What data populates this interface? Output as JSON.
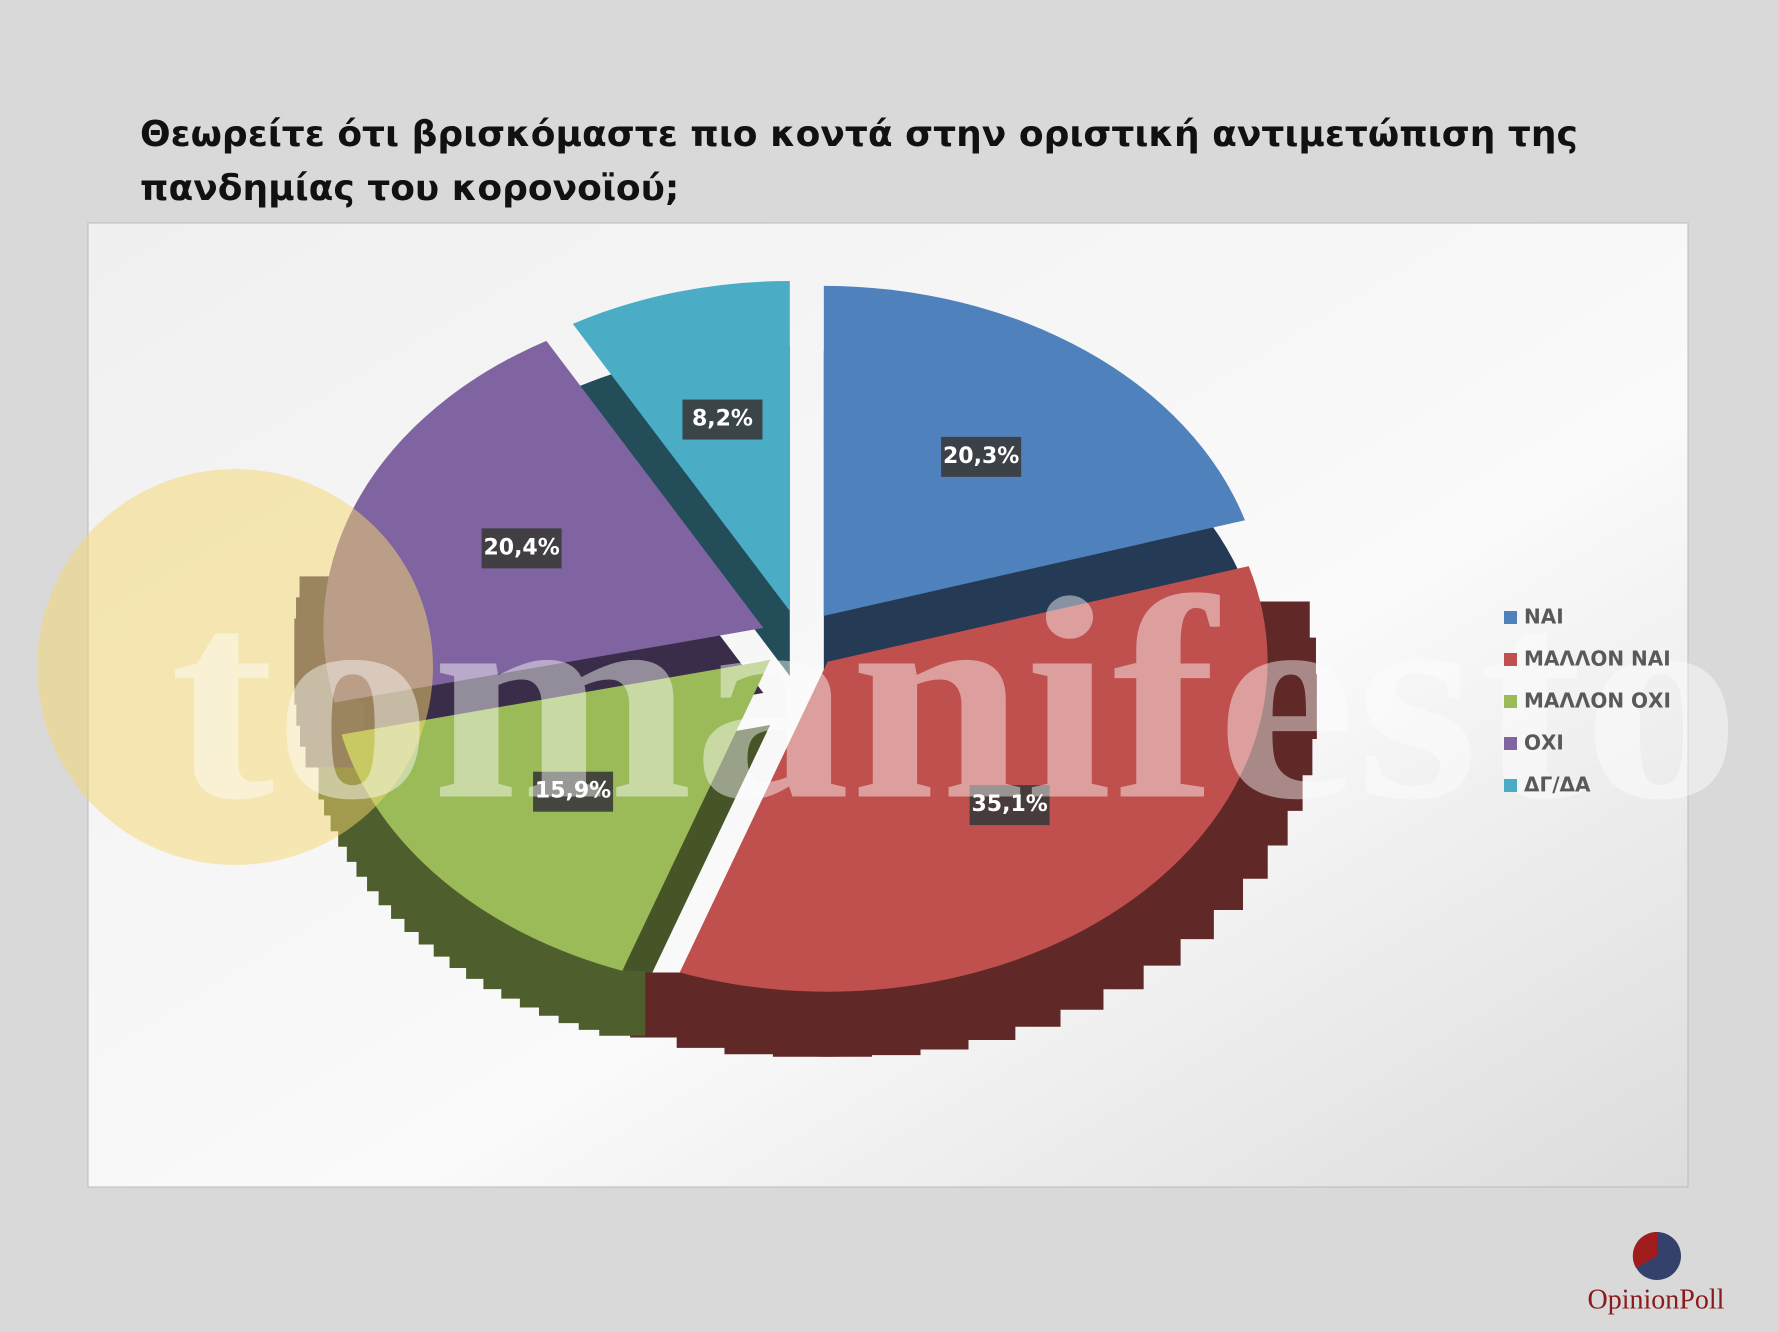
{
  "chart_data": {
    "type": "pie",
    "title": "Θεωρείτε ότι βρισκόμαστε πιο κοντά στην οριστική αντιμετώπιση  της πανδημίας του κορονοϊού;",
    "categories": [
      "ΝΑΙ",
      "ΜΑΛΛΟΝ ΝΑΙ",
      "ΜΑΛΛΟΝ ΟΧΙ",
      "ΟΧΙ",
      "ΔΓ/ΔΑ"
    ],
    "values": [
      20.3,
      35.1,
      15.9,
      20.4,
      8.2
    ],
    "value_labels": [
      "20,3%",
      "35,1%",
      "15,9%",
      "20,4%",
      "8,2%"
    ],
    "colors": [
      "#4f81bd",
      "#c0504d",
      "#9bbb59",
      "#8064a2",
      "#4bacc6"
    ],
    "legend": "right"
  },
  "watermark": "tomanifesto",
  "logo": "OpinionPoll"
}
